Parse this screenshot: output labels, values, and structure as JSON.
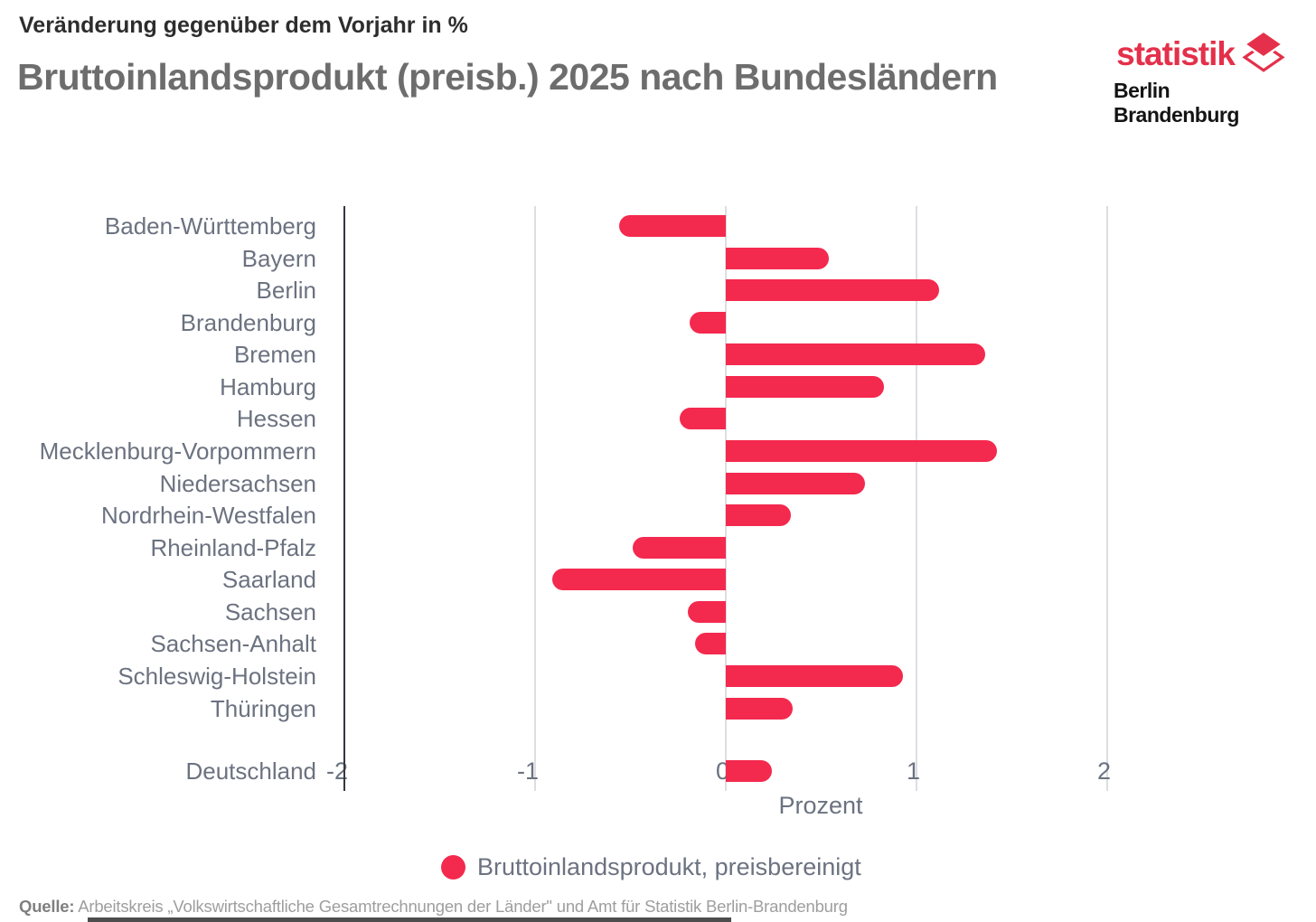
{
  "header": {
    "subtitle": "Veränderung gegenüber dem Vorjahr in %",
    "title": "Bruttoinlandsprodukt (preisb.) 2025 nach Bundesländern"
  },
  "logo": {
    "brand": "statistik",
    "region": "Berlin Brandenburg",
    "brand_color": "#e4304a"
  },
  "chart_data": {
    "type": "bar",
    "orientation": "horizontal",
    "title": "Bruttoinlandsprodukt (preisb.) 2025 nach Bundesländern",
    "subtitle": "Veränderung gegenüber dem Vorjahr in %",
    "xlabel": "Prozent",
    "xlim": [
      -2,
      2
    ],
    "x_ticks": [
      -2,
      -1,
      0,
      1,
      2
    ],
    "x_tick_labels": [
      "-2",
      "-1",
      "0",
      "1",
      "2"
    ],
    "grid": true,
    "bar_color": "#f4294e",
    "categories": [
      "Baden-Württemberg",
      "Bayern",
      "Berlin",
      "Brandenburg",
      "Bremen",
      "Hamburg",
      "Hessen",
      "Mecklenburg-Vorpommern",
      "Niedersachsen",
      "Nordrhein-Westfalen",
      "Rheinland-Pfalz",
      "Saarland",
      "Sachsen",
      "Sachsen-Anhalt",
      "Schleswig-Holstein",
      "Thüringen",
      "Deutschland"
    ],
    "values": [
      -0.56,
      0.54,
      1.12,
      -0.19,
      1.36,
      0.83,
      -0.24,
      1.42,
      0.73,
      0.34,
      -0.49,
      -0.91,
      -0.2,
      -0.16,
      0.93,
      0.35,
      0.24
    ],
    "legend": {
      "label": "Bruttoinlandsprodukt, preisbereinigt",
      "marker_color": "#f4294e",
      "position": "bottom-center"
    }
  },
  "footer": {
    "source_label": "Quelle:",
    "source_text": "Arbeitskreis „Volkswirtschaftliche Gesamtrechnungen der Länder\" und Amt für Statistik Berlin-Brandenburg"
  }
}
